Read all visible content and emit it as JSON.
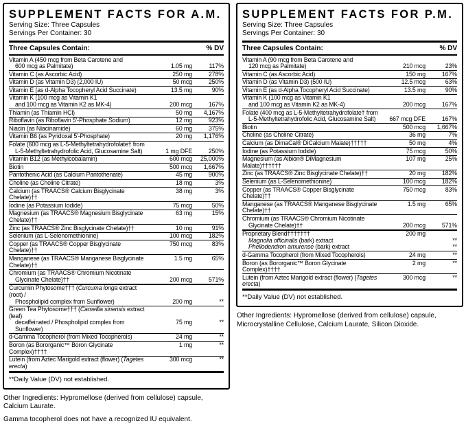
{
  "panels": [
    {
      "title": "SUPPLEMENT FACTS FOR A.M.",
      "serving_size": "Serving Size: Three Capsules",
      "servings_per_container": "Servings Per Container: 30",
      "columns": {
        "contain": "Three Capsules Contain:",
        "dv": "% DV"
      },
      "rows": [
        {
          "lines": [
            {
              "t": [
                "Vitamin A (450 mcg from Beta Carotene and"
              ]
            },
            {
              "t": [
                "600 mcg as Palmitate)"
              ],
              "indent": true,
              "amount": "1.05 mg",
              "dv": "117%"
            }
          ]
        },
        {
          "lines": [
            {
              "t": [
                "Vitamin C (as Ascorbic Acid)"
              ],
              "amount": "250 mg",
              "dv": "278%"
            }
          ]
        },
        {
          "lines": [
            {
              "t": [
                "Vitamin D (as Vitamin D3) (2,000 IU)"
              ],
              "amount": "50 mcg",
              "dv": "250%"
            }
          ]
        },
        {
          "lines": [
            {
              "t": [
                "Vitamin E (as d-Alpha Tocopheryl Acid Succinate)"
              ],
              "amount": "13.5 mg",
              "dv": "90%"
            }
          ]
        },
        {
          "lines": [
            {
              "t": [
                "Vitamin K (100 mcg as Vitamin K1"
              ]
            },
            {
              "t": [
                "and 100 mcg as Vitamin K2 as MK-4)"
              ],
              "indent": true,
              "amount": "200 mcg",
              "dv": "167%"
            }
          ]
        },
        {
          "lines": [
            {
              "t": [
                "Thiamin (as Thiamin HCl)"
              ],
              "amount": "50 mg",
              "dv": "4,167%"
            }
          ]
        },
        {
          "lines": [
            {
              "t": [
                "Riboflavin (as Riboflavin 5'-Phosphate Sodium)"
              ],
              "amount": "12 mg",
              "dv": "923%"
            }
          ]
        },
        {
          "lines": [
            {
              "t": [
                "Niacin (as Niacinamide)"
              ],
              "amount": "60 mg",
              "dv": "375%"
            }
          ]
        },
        {
          "lines": [
            {
              "t": [
                "Vitamin B6 (as Pyridoxal 5'-Phosphate)"
              ],
              "amount": "20 mg",
              "dv": "1,176%"
            }
          ]
        },
        {
          "lines": [
            {
              "t": [
                "Folate (600 mcg as L-5-Methyltetrahydrofolate† from"
              ]
            },
            {
              "t": [
                "L-5-Methyltetrahydrofolic Acid, Glucosamine Salt)"
              ],
              "indent": true,
              "amount": "1 mg DFE",
              "dv": "250%"
            }
          ]
        },
        {
          "lines": [
            {
              "t": [
                "Vitamin B12 (as Methylcobalamin)"
              ],
              "amount": "600 mcg",
              "dv": "25,000%"
            }
          ]
        },
        {
          "lines": [
            {
              "t": [
                "Biotin"
              ],
              "amount": "500 mcg",
              "dv": "1,667%"
            }
          ]
        },
        {
          "lines": [
            {
              "t": [
                "Pantothenic Acid (as Calcium Pantothenate)"
              ],
              "amount": "45 mg",
              "dv": "900%"
            }
          ]
        },
        {
          "lines": [
            {
              "t": [
                "Choline (as Choline Citrate)"
              ],
              "amount": "18 mg",
              "dv": "3%"
            }
          ]
        },
        {
          "lines": [
            {
              "t": [
                "Calcium (as TRAACS® Calcium Bisglycinate Chelate)††"
              ],
              "amount": "38 mg",
              "dv": "3%"
            }
          ]
        },
        {
          "lines": [
            {
              "t": [
                "Iodine (as Potassium Iodide)"
              ],
              "amount": "75 mcg",
              "dv": "50%"
            }
          ]
        },
        {
          "lines": [
            {
              "t": [
                "Magnesium (as TRAACS® Magnesium Bisglycinate Chelate)††"
              ],
              "amount": "63 mg",
              "dv": "15%"
            }
          ]
        },
        {
          "lines": [
            {
              "t": [
                "Zinc (as TRAACS® Zinc Bisglycinate Chelate)††"
              ],
              "amount": "10 mg",
              "dv": "91%"
            }
          ]
        },
        {
          "lines": [
            {
              "t": [
                "Selenium (as L-Selenomethionine)"
              ],
              "amount": "100 mcg",
              "dv": "182%"
            }
          ]
        },
        {
          "lines": [
            {
              "t": [
                "Copper (as TRAACS® Copper Bisglycinate Chelate)††"
              ],
              "amount": "750 mcg",
              "dv": "83%"
            }
          ]
        },
        {
          "lines": [
            {
              "t": [
                "Manganese (as TRAACS® Manganese Bisglycinate Chelate)††"
              ],
              "amount": "1.5 mg",
              "dv": "65%"
            }
          ]
        },
        {
          "lines": [
            {
              "t": [
                "Chromium (as TRAACS® Chromium Nicotinate"
              ]
            },
            {
              "t": [
                "Glycinate Chelate)††"
              ],
              "indent": true,
              "amount": "200 mcg",
              "dv": "571%"
            }
          ]
        },
        {
          "thick_top": true,
          "lines": [
            {
              "t": [
                "Curcumin Phytosome††† (",
                {
                  "i": "Curcuma longa"
                },
                " extract (root) /"
              ]
            },
            {
              "t": [
                "Phospholipid complex from Sunflower)"
              ],
              "indent": true,
              "amount": "200 mg",
              "dv": "**"
            }
          ]
        },
        {
          "lines": [
            {
              "t": [
                "Green Tea Phytosome††† (",
                {
                  "i": "Camellia sinensis"
                },
                " extract (leaf)"
              ]
            },
            {
              "t": [
                "decaffeinated / Phospholipid complex from Sunflower)"
              ],
              "indent": true,
              "amount": "75 mg",
              "dv": "**"
            }
          ]
        },
        {
          "lines": [
            {
              "t": [
                "d-Gamma Tocopherol (from Mixed Tocopherols)"
              ],
              "amount": "24 mg",
              "dv": "**"
            }
          ]
        },
        {
          "lines": [
            {
              "t": [
                "Boron (as Bororganic™ Boron Glycinate Complex)††††"
              ],
              "amount": "1 mg",
              "dv": "**"
            }
          ]
        },
        {
          "lines": [
            {
              "t": [
                "Lutein (from Aztec Marigold extract (flower) (",
                {
                  "i": "Tagetes erecta"
                },
                ")"
              ],
              "amount": "300 mcg",
              "dv": "**"
            }
          ]
        }
      ],
      "dv_footnote": "**Daily Value (DV) not established.",
      "notes": [
        "Other Ingredients: Hypromellose (derived from cellulose) capsule, Calcium Laurate.",
        "Gamma tocopherol does not have a recognized IU equivalent."
      ]
    },
    {
      "title": "SUPPLEMENT FACTS FOR P.M.",
      "serving_size": "Serving Size: Three Capsules",
      "servings_per_container": "Servings Per Container: 30",
      "columns": {
        "contain": "Three Capsules Contain:",
        "dv": "% DV"
      },
      "rows": [
        {
          "lines": [
            {
              "t": [
                "Vitamin A (90 mcg from Beta Carotene and"
              ]
            },
            {
              "t": [
                "120 mcg as Palmitate)"
              ],
              "indent": true,
              "amount": "210 mcg",
              "dv": "23%"
            }
          ]
        },
        {
          "lines": [
            {
              "t": [
                "Vitamin C (as Ascorbic Acid)"
              ],
              "amount": "150 mg",
              "dv": "167%"
            }
          ]
        },
        {
          "lines": [
            {
              "t": [
                "Vitamin D (as Vitamin D3) (500 IU)"
              ],
              "amount": "12.5 mcg",
              "dv": "63%"
            }
          ]
        },
        {
          "lines": [
            {
              "t": [
                "Vitamin E (as d-Alpha Tocopheryl Acid Succinate)"
              ],
              "amount": "13.5 mg",
              "dv": "90%"
            }
          ]
        },
        {
          "lines": [
            {
              "t": [
                "Vitamin K (100 mcg as Vitamin K1"
              ]
            },
            {
              "t": [
                "and 100 mcg as Vitamin K2 as MK-4)"
              ],
              "indent": true,
              "amount": "200 mcg",
              "dv": "167%"
            }
          ]
        },
        {
          "lines": [
            {
              "t": [
                "Folate (400 mcg as L-5-Methyltetrahydrofolate† from"
              ]
            },
            {
              "t": [
                "L-5-Methyltetrahydrofolic Acid, Glucosamine Salt)"
              ],
              "indent": true,
              "amount": "667 mcg DFE",
              "dv": "167%"
            }
          ]
        },
        {
          "lines": [
            {
              "t": [
                "Biotin"
              ],
              "amount": "500 mcg",
              "dv": "1,667%"
            }
          ]
        },
        {
          "lines": [
            {
              "t": [
                "Choline (as Choline Citrate)"
              ],
              "amount": "36 mg",
              "dv": "7%"
            }
          ]
        },
        {
          "lines": [
            {
              "t": [
                "Calcium (as DimaCal® DiCalcium Malate)†††††"
              ],
              "amount": "50 mg",
              "dv": "4%"
            }
          ]
        },
        {
          "lines": [
            {
              "t": [
                "Iodine (as Potassium Iodide)"
              ],
              "amount": "75 mcg",
              "dv": "50%"
            }
          ]
        },
        {
          "lines": [
            {
              "t": [
                "Magnesium (as Albion® DiMagnesium Malate)††††††"
              ],
              "amount": "107 mg",
              "dv": "25%"
            }
          ]
        },
        {
          "lines": [
            {
              "t": [
                "Zinc (as TRAACS® Zinc Bisglycinate Chelate)††"
              ],
              "amount": "20 mg",
              "dv": "182%"
            }
          ]
        },
        {
          "lines": [
            {
              "t": [
                "Selenium (as L-Selenomethionine)"
              ],
              "amount": "100 mcg",
              "dv": "182%"
            }
          ]
        },
        {
          "lines": [
            {
              "t": [
                "Copper (as TRAACS® Copper Bisglycinate Chelate)††"
              ],
              "amount": "750 mcg",
              "dv": "83%"
            }
          ]
        },
        {
          "lines": [
            {
              "t": [
                "Manganese (as TRAACS® Manganese Bisglycinate Chelate)††"
              ],
              "amount": "1.5 mg",
              "dv": "65%"
            }
          ]
        },
        {
          "lines": [
            {
              "t": [
                "Chromium (as TRAACS® Chromium Nicotinate"
              ]
            },
            {
              "t": [
                "Glycinate Chelate)††"
              ],
              "indent": true,
              "amount": "200 mcg",
              "dv": "571%"
            }
          ]
        },
        {
          "thick_top": true,
          "lines": [
            {
              "t": [
                "Proprietary Blend†††††††"
              ],
              "amount": "200 mg",
              "dv": ""
            },
            {
              "t": [
                {
                  "i": "Magnolia officinalis"
                },
                " (bark) extract"
              ],
              "indent": true,
              "dv": "**"
            },
            {
              "t": [
                {
                  "i": "Phellodendron amurense"
                },
                " (bark) extract"
              ],
              "indent": true,
              "dv": "**"
            }
          ]
        },
        {
          "lines": [
            {
              "t": [
                "d-Gamma Tocopherol (from Mixed Tocopherols)"
              ],
              "amount": "24 mg",
              "dv": "**"
            }
          ]
        },
        {
          "lines": [
            {
              "t": [
                "Boron (as Bororganic™ Boron Glycinate Complex)††††"
              ],
              "amount": "2 mg",
              "dv": "**"
            }
          ]
        },
        {
          "lines": [
            {
              "t": [
                "Lutein (from Aztec Marigold extract (flower) (",
                {
                  "i": "Tagetes erecta"
                },
                ")"
              ],
              "amount": "300 mcg",
              "dv": "**"
            }
          ]
        }
      ],
      "dv_footnote": "**Daily Value (DV) not established.",
      "notes": [
        "Other Ingredients: Hypromellose (derived from cellulose) capsule, Microcrystalline Cellulose, Calcium Laurate, Silicon Dioxide."
      ]
    }
  ]
}
